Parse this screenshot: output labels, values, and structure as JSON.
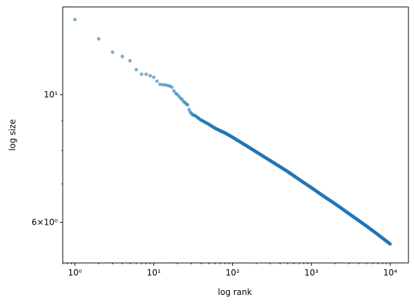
{
  "chart_data": {
    "type": "scatter",
    "title": "",
    "xlabel": "log rank",
    "ylabel": "log size",
    "xscale": "log",
    "yscale": "log",
    "xlim": [
      0.7,
      17000
    ],
    "ylim": [
      5.1,
      14.2
    ],
    "grid": false,
    "legend": "none",
    "marker_color": "#1f77b4",
    "marker_alpha": 0.6,
    "x_ticks": [
      {
        "value": 1,
        "label": "10⁰"
      },
      {
        "value": 10,
        "label": "10¹"
      },
      {
        "value": 100,
        "label": "10²"
      },
      {
        "value": 1000,
        "label": "10³"
      },
      {
        "value": 10000,
        "label": "10⁴"
      }
    ],
    "y_ticks": [
      {
        "value": 10,
        "label": "10¹"
      },
      {
        "value": 6,
        "label": "6×10⁰"
      }
    ],
    "y_minor_ticks": [
      7,
      8,
      9
    ],
    "series": [
      {
        "x": [
          1,
          2,
          3,
          4,
          5,
          6,
          7,
          8,
          9,
          10,
          11,
          12,
          13,
          14,
          15,
          16,
          17,
          18,
          19,
          20,
          21,
          22,
          23,
          24,
          25,
          26,
          27,
          28,
          29,
          30,
          31,
          32,
          33,
          34,
          35,
          36,
          37,
          38,
          39,
          40,
          45,
          50,
          60,
          70,
          80,
          100,
          150,
          200,
          300,
          500,
          700,
          1000,
          1500,
          2000,
          3000,
          5000,
          7000,
          10000
        ],
        "y": [
          13.5,
          12.5,
          11.85,
          11.65,
          11.45,
          11.05,
          10.85,
          10.85,
          10.78,
          10.72,
          10.55,
          10.42,
          10.4,
          10.4,
          10.37,
          10.35,
          10.3,
          10.15,
          10.05,
          10.0,
          9.92,
          9.85,
          9.8,
          9.72,
          9.68,
          9.62,
          9.6,
          9.42,
          9.33,
          9.28,
          9.23,
          9.21,
          9.2,
          9.18,
          9.15,
          9.12,
          9.1,
          9.07,
          9.05,
          9.03,
          8.95,
          8.88,
          8.74,
          8.65,
          8.58,
          8.43,
          8.15,
          7.95,
          7.68,
          7.35,
          7.12,
          6.89,
          6.63,
          6.46,
          6.21,
          5.91,
          5.71,
          5.5
        ]
      }
    ]
  }
}
